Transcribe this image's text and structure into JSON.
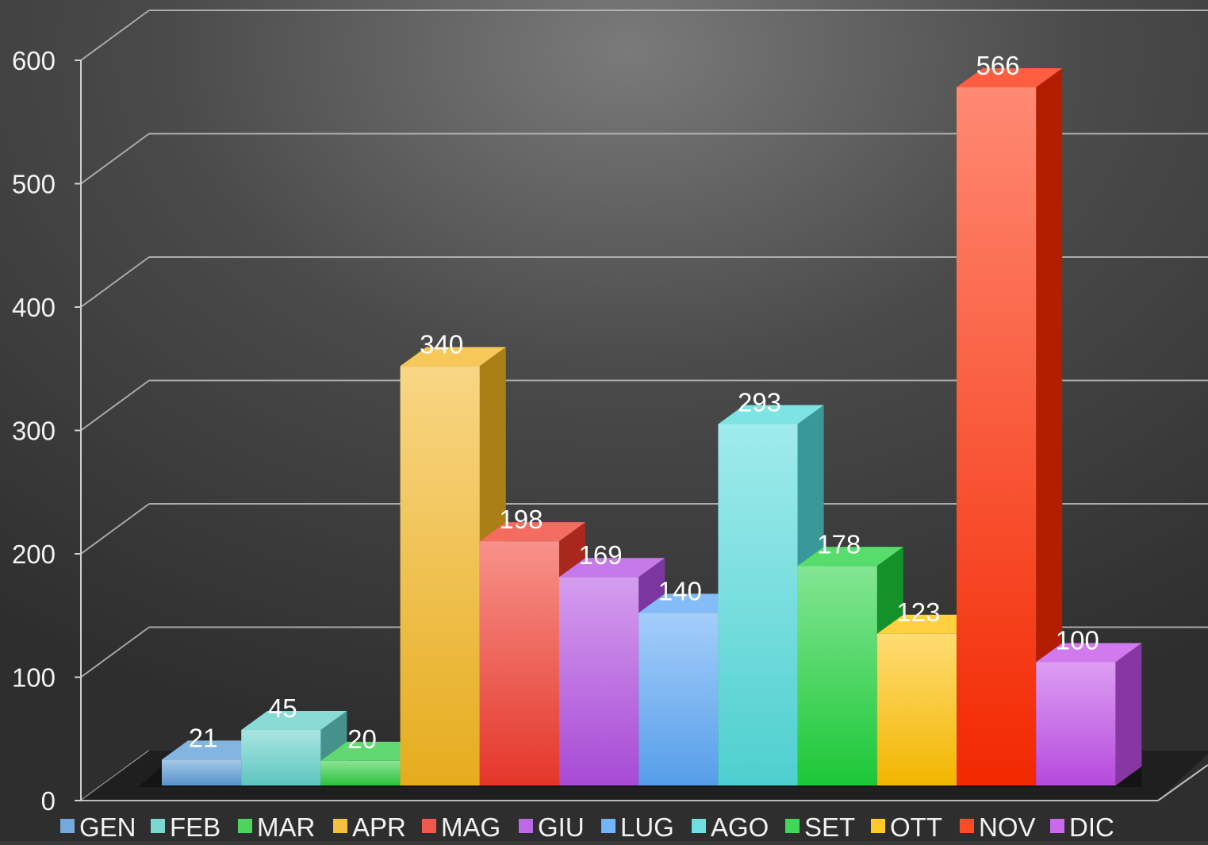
{
  "chart_data": {
    "type": "bar",
    "title": "",
    "xlabel": "",
    "ylabel": "",
    "ylim": [
      0,
      600
    ],
    "yticks": [
      0,
      100,
      200,
      300,
      400,
      500,
      600
    ],
    "grid": true,
    "three_d": true,
    "legend_position": "bottom",
    "categories": [
      "GEN",
      "FEB",
      "MAR",
      "APR",
      "MAG",
      "GIU",
      "LUG",
      "AGO",
      "SET",
      "OTT",
      "NOV",
      "DIC"
    ],
    "values": [
      21,
      45,
      20,
      340,
      198,
      169,
      140,
      293,
      178,
      123,
      566,
      100
    ],
    "colors": [
      "#5b9bd5",
      "#62d0c8",
      "#2ecc40",
      "#f2b51f",
      "#f0392b",
      "#b04ee0",
      "#5aa6f5",
      "#52dada",
      "#1dd13a",
      "#ffc000",
      "#ff2a00",
      "#c04ee8"
    ]
  }
}
